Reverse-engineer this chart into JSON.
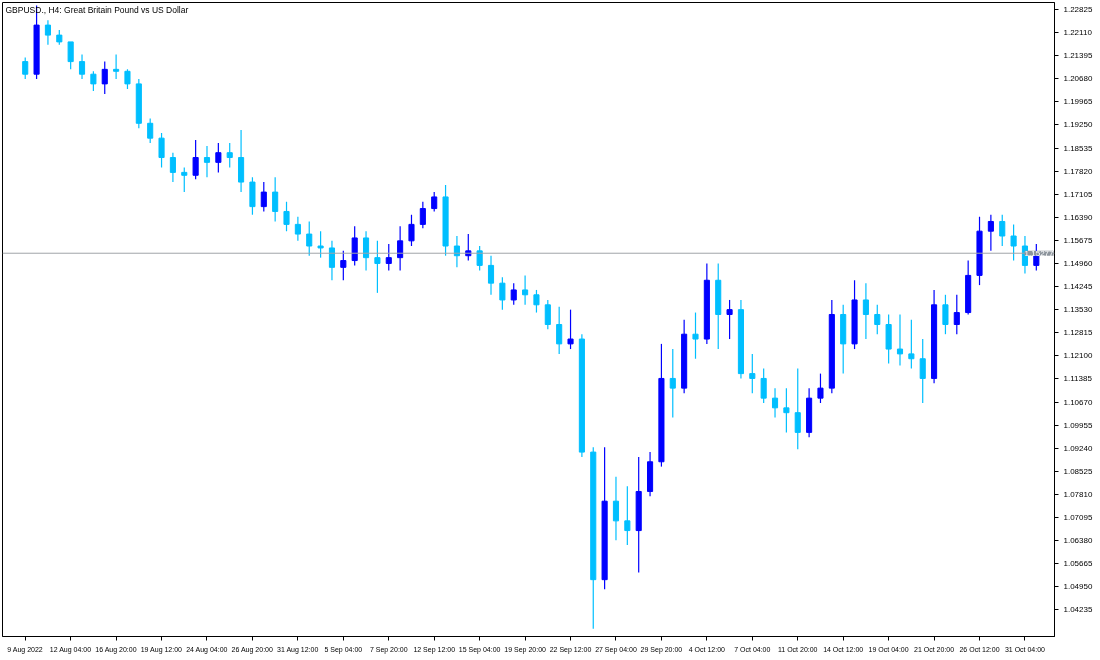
{
  "chart_data": {
    "type": "candlestick",
    "title": "GBPUSD., H4:  Great Britain Pound vs US Dollar",
    "categories": [
      "9 Aug 2022",
      null,
      null,
      null,
      "12 Aug 04:00",
      null,
      null,
      null,
      "16 Aug 20:00",
      null,
      null,
      null,
      "19 Aug 12:00",
      null,
      null,
      null,
      "24 Aug 04:00",
      null,
      null,
      null,
      "26 Aug 20:00",
      null,
      null,
      null,
      "31 Aug 12:00",
      null,
      null,
      null,
      "5 Sep 04:00",
      null,
      null,
      null,
      "7 Sep 20:00",
      null,
      null,
      null,
      "12 Sep 12:00",
      null,
      null,
      null,
      "15 Sep 04:00",
      null,
      null,
      null,
      "19 Sep 20:00",
      null,
      null,
      null,
      "22 Sep 12:00",
      null,
      null,
      null,
      "27 Sep 04:00",
      null,
      null,
      null,
      "29 Sep 20:00",
      null,
      null,
      null,
      "4 Oct 12:00",
      null,
      null,
      null,
      "7 Oct 04:00",
      null,
      null,
      null,
      "11 Oct 20:00",
      null,
      null,
      null,
      "14 Oct 12:00",
      null,
      null,
      null,
      "19 Oct 04:00",
      null,
      null,
      null,
      "21 Oct 20:00",
      null,
      null,
      null,
      "26 Oct 12:00",
      null,
      null,
      null,
      "31 Oct 04:00",
      null
    ],
    "ohlc": [
      [
        1.2121,
        1.2134,
        1.2067,
        1.2082
      ],
      [
        1.2082,
        1.2295,
        1.2067,
        1.2234
      ],
      [
        1.2234,
        1.2249,
        1.2173,
        1.2203
      ],
      [
        1.2203,
        1.2219,
        1.2173,
        1.2182
      ],
      [
        1.2182,
        1.2182,
        1.2097,
        1.2121
      ],
      [
        1.2121,
        1.2143,
        1.2067,
        1.2082
      ],
      [
        1.2082,
        1.2091,
        1.203,
        1.2052
      ],
      [
        1.2052,
        1.2121,
        1.2021,
        1.2097
      ],
      [
        1.2097,
        1.2143,
        1.2067,
        1.2091
      ],
      [
        1.2091,
        1.2097,
        1.2036,
        1.2052
      ],
      [
        1.2052,
        1.2067,
        1.1915,
        1.193
      ],
      [
        1.193,
        1.1945,
        1.1869,
        1.1884
      ],
      [
        1.1884,
        1.19,
        1.1793,
        1.1824
      ],
      [
        1.1824,
        1.1839,
        1.1748,
        1.1778
      ],
      [
        1.1778,
        1.1793,
        1.1717,
        1.1769
      ],
      [
        1.1769,
        1.1878,
        1.1757,
        1.1824
      ],
      [
        1.1824,
        1.186,
        1.1763,
        1.1809
      ],
      [
        1.1809,
        1.1869,
        1.1778,
        1.1839
      ],
      [
        1.1839,
        1.1869,
        1.1793,
        1.1824
      ],
      [
        1.1824,
        1.1909,
        1.1717,
        1.1748
      ],
      [
        1.1748,
        1.1763,
        1.1647,
        1.1672
      ],
      [
        1.1672,
        1.1748,
        1.1657,
        1.1717
      ],
      [
        1.1717,
        1.1763,
        1.1626,
        1.1657
      ],
      [
        1.1657,
        1.1687,
        1.1596,
        1.1617
      ],
      [
        1.1617,
        1.1641,
        1.1566,
        1.1587
      ],
      [
        1.1587,
        1.1626,
        1.152,
        1.155
      ],
      [
        1.155,
        1.1596,
        1.1514,
        1.1544
      ],
      [
        1.1544,
        1.1566,
        1.1444,
        1.1484
      ],
      [
        1.1484,
        1.1535,
        1.1444,
        1.1505
      ],
      [
        1.1505,
        1.1611,
        1.149,
        1.1575
      ],
      [
        1.1575,
        1.1596,
        1.1474,
        1.1514
      ],
      [
        1.1514,
        1.1566,
        1.1405,
        1.1496
      ],
      [
        1.1496,
        1.1556,
        1.1474,
        1.1514
      ],
      [
        1.1514,
        1.1611,
        1.1474,
        1.1566
      ],
      [
        1.1566,
        1.1647,
        1.155,
        1.1617
      ],
      [
        1.1617,
        1.1687,
        1.1605,
        1.1666
      ],
      [
        1.1666,
        1.1717,
        1.1657,
        1.1702
      ],
      [
        1.1702,
        1.1739,
        1.152,
        1.155
      ],
      [
        1.155,
        1.1581,
        1.1484,
        1.152
      ],
      [
        1.152,
        1.1587,
        1.1505,
        1.1535
      ],
      [
        1.1535,
        1.155,
        1.1474,
        1.149
      ],
      [
        1.149,
        1.152,
        1.1399,
        1.1435
      ],
      [
        1.1435,
        1.1453,
        1.1353,
        1.1383
      ],
      [
        1.1383,
        1.1435,
        1.1368,
        1.1414
      ],
      [
        1.1414,
        1.1459,
        1.1368,
        1.1399
      ],
      [
        1.1399,
        1.1414,
        1.1344,
        1.1368
      ],
      [
        1.1368,
        1.1383,
        1.1292,
        1.1307
      ],
      [
        1.1307,
        1.1362,
        1.1216,
        1.1247
      ],
      [
        1.1247,
        1.1353,
        1.1231,
        1.1262
      ],
      [
        1.1262,
        1.1277,
        1.0897,
        1.0912
      ],
      [
        1.0912,
        1.0927,
        1.0365,
        1.0517
      ],
      [
        1.0517,
        1.0927,
        1.0487,
        1.076
      ],
      [
        1.076,
        1.0836,
        1.0639,
        1.0699
      ],
      [
        1.0699,
        1.0806,
        1.0624,
        1.0669
      ],
      [
        1.0669,
        1.0897,
        1.0539,
        1.079
      ],
      [
        1.079,
        1.0912,
        1.0775,
        1.0882
      ],
      [
        1.0882,
        1.1247,
        1.0867,
        1.114
      ],
      [
        1.114,
        1.1231,
        1.1019,
        1.111
      ],
      [
        1.111,
        1.1322,
        1.1094,
        1.1277
      ],
      [
        1.1277,
        1.1344,
        1.1201,
        1.1262
      ],
      [
        1.1262,
        1.1496,
        1.1247,
        1.1444
      ],
      [
        1.1444,
        1.1496,
        1.1231,
        1.1338
      ],
      [
        1.1338,
        1.1383,
        1.1262,
        1.1353
      ],
      [
        1.1353,
        1.1383,
        1.114,
        1.1155
      ],
      [
        1.1155,
        1.1216,
        1.1094,
        1.114
      ],
      [
        1.114,
        1.1171,
        1.1064,
        1.1079
      ],
      [
        1.1079,
        1.111,
        1.1019,
        1.1049
      ],
      [
        1.1049,
        1.111,
        1.0973,
        1.1034
      ],
      [
        1.1034,
        1.1171,
        1.0921,
        1.0973
      ],
      [
        1.0973,
        1.111,
        1.0958,
        1.1079
      ],
      [
        1.1079,
        1.1155,
        1.1064,
        1.111
      ],
      [
        1.111,
        1.1383,
        1.1094,
        1.1338
      ],
      [
        1.1338,
        1.1368,
        1.1155,
        1.1247
      ],
      [
        1.1247,
        1.1444,
        1.1231,
        1.1383
      ],
      [
        1.1383,
        1.1435,
        1.1262,
        1.1338
      ],
      [
        1.1338,
        1.1368,
        1.1277,
        1.1307
      ],
      [
        1.1307,
        1.1338,
        1.1186,
        1.1231
      ],
      [
        1.1231,
        1.1338,
        1.118,
        1.1216
      ],
      [
        1.1216,
        1.1322,
        1.1171,
        1.1201
      ],
      [
        1.1201,
        1.1262,
        1.1064,
        1.114
      ],
      [
        1.114,
        1.1414,
        1.1125,
        1.1368
      ],
      [
        1.1368,
        1.1399,
        1.1277,
        1.1307
      ],
      [
        1.1307,
        1.1399,
        1.1277,
        1.1344
      ],
      [
        1.1344,
        1.1505,
        1.1338,
        1.1459
      ],
      [
        1.1459,
        1.1641,
        1.1429,
        1.1596
      ],
      [
        1.1596,
        1.1647,
        1.1535,
        1.1626
      ],
      [
        1.1626,
        1.1647,
        1.155,
        1.1581
      ],
      [
        1.1581,
        1.1617,
        1.1505,
        1.155
      ],
      [
        1.155,
        1.1581,
        1.1465,
        1.149
      ],
      [
        1.149,
        1.1556,
        1.1474,
        1.15277
      ]
    ],
    "colors": [
      "#00bfff",
      "#0000ff",
      "#00bfff",
      "#00bfff",
      "#00bfff",
      "#00bfff",
      "#00bfff",
      "#0000ff",
      "#00bfff",
      "#00bfff",
      "#00bfff",
      "#00bfff",
      "#00bfff",
      "#00bfff",
      "#00bfff",
      "#0000ff",
      "#00bfff",
      "#0000ff",
      "#00bfff",
      "#00bfff",
      "#00bfff",
      "#0000ff",
      "#00bfff",
      "#00bfff",
      "#00bfff",
      "#00bfff",
      "#00bfff",
      "#00bfff",
      "#0000ff",
      "#0000ff",
      "#00bfff",
      "#00bfff",
      "#0000ff",
      "#0000ff",
      "#0000ff",
      "#0000ff",
      "#0000ff",
      "#00bfff",
      "#00bfff",
      "#0000ff",
      "#00bfff",
      "#00bfff",
      "#00bfff",
      "#0000ff",
      "#00bfff",
      "#00bfff",
      "#00bfff",
      "#00bfff",
      "#0000ff",
      "#00bfff",
      "#00bfff",
      "#0000ff",
      "#00bfff",
      "#00bfff",
      "#0000ff",
      "#0000ff",
      "#0000ff",
      "#00bfff",
      "#0000ff",
      "#00bfff",
      "#0000ff",
      "#00bfff",
      "#0000ff",
      "#00bfff",
      "#00bfff",
      "#00bfff",
      "#00bfff",
      "#00bfff",
      "#00bfff",
      "#0000ff",
      "#0000ff",
      "#0000ff",
      "#00bfff",
      "#0000ff",
      "#00bfff",
      "#00bfff",
      "#00bfff",
      "#00bfff",
      "#00bfff",
      "#00bfff",
      "#0000ff",
      "#00bfff",
      "#0000ff",
      "#0000ff",
      "#0000ff",
      "#0000ff",
      "#00bfff",
      "#00bfff",
      "#00bfff",
      "#0000ff"
    ],
    "ylim": [
      1.0341,
      1.2304
    ],
    "yticks": [
      {
        "value": 1.04235,
        "label": "1.04235"
      },
      {
        "value": 1.0495,
        "label": "1.04950"
      },
      {
        "value": 1.05665,
        "label": "1.05665"
      },
      {
        "value": 1.0638,
        "label": "1.06380"
      },
      {
        "value": 1.07095,
        "label": "1.07095"
      },
      {
        "value": 1.0781,
        "label": "1.07810"
      },
      {
        "value": 1.08525,
        "label": "1.08525"
      },
      {
        "value": 1.0924,
        "label": "1.09240"
      },
      {
        "value": 1.09955,
        "label": "1.09955"
      },
      {
        "value": 1.1067,
        "label": "1.10670"
      },
      {
        "value": 1.11385,
        "label": "1.11385"
      },
      {
        "value": 1.121,
        "label": "1.12100"
      },
      {
        "value": 1.12815,
        "label": "1.12815"
      },
      {
        "value": 1.1353,
        "label": "1.13530"
      },
      {
        "value": 1.14245,
        "label": "1.14245"
      },
      {
        "value": 1.1496,
        "label": "1.14960"
      },
      {
        "value": 1.15675,
        "label": "1.15675"
      },
      {
        "value": 1.1639,
        "label": "1.16390"
      },
      {
        "value": 1.17105,
        "label": "1.17105"
      },
      {
        "value": 1.1782,
        "label": "1.17820"
      },
      {
        "value": 1.18535,
        "label": "1.18535"
      },
      {
        "value": 1.1925,
        "label": "1.19250"
      },
      {
        "value": 1.19965,
        "label": "1.19965"
      },
      {
        "value": 1.2068,
        "label": "1.20680"
      },
      {
        "value": 1.21395,
        "label": "1.21395"
      },
      {
        "value": 1.2211,
        "label": "1.22110"
      },
      {
        "value": 1.22825,
        "label": "1.22825"
      }
    ],
    "ref_lines": [
      {
        "axis": "y",
        "value": 1.15277,
        "label": "1.15277",
        "color": "#a0a4a8"
      }
    ],
    "grid": false
  }
}
